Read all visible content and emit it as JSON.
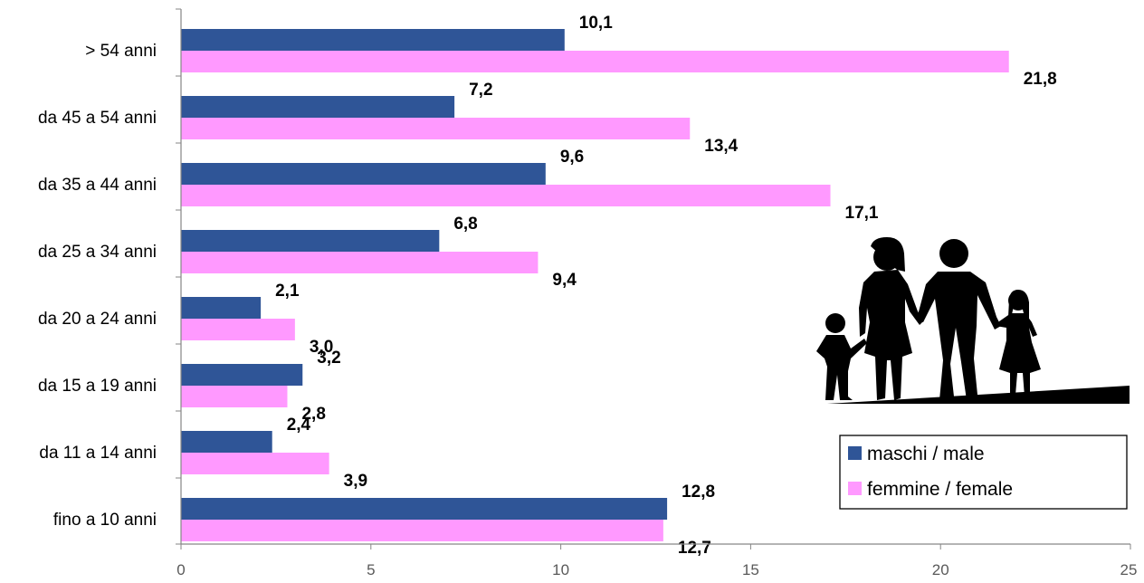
{
  "chart_data": {
    "type": "bar",
    "orientation": "horizontal",
    "categories": [
      "> 54 anni",
      "da 45 a 54 anni",
      "da 35 a 44 anni",
      "da 25 a 34 anni",
      "da 20 a 24 anni",
      "da 15 a 19 anni",
      "da 11 a 14 anni",
      "fino a 10 anni"
    ],
    "series": [
      {
        "name": "maschi / male",
        "color": "#2F5597",
        "values": [
          10.1,
          7.2,
          9.6,
          6.8,
          2.1,
          3.2,
          2.4,
          12.8
        ],
        "labels": [
          "10,1",
          "7,2",
          "9,6",
          "6,8",
          "2,1",
          "3,2",
          "2,4",
          "12,8"
        ]
      },
      {
        "name": "femmine / female",
        "color": "#FF99FF",
        "values": [
          21.8,
          13.4,
          17.1,
          9.4,
          3.0,
          2.8,
          3.9,
          12.7
        ],
        "labels": [
          "21,8",
          "13,4",
          "17,1",
          "9,4",
          "3,0",
          "2,8",
          "3,9",
          "12,7"
        ]
      }
    ],
    "xlim": [
      0,
      25
    ],
    "xticks": [
      0,
      5,
      10,
      15,
      20,
      25
    ],
    "xtick_labels": [
      "0",
      "5",
      "10",
      "15",
      "20",
      "25"
    ],
    "title": "",
    "xlabel": "",
    "ylabel": "",
    "grid": false,
    "legend_position": "bottom-right",
    "illustration": "family-silhouette"
  }
}
